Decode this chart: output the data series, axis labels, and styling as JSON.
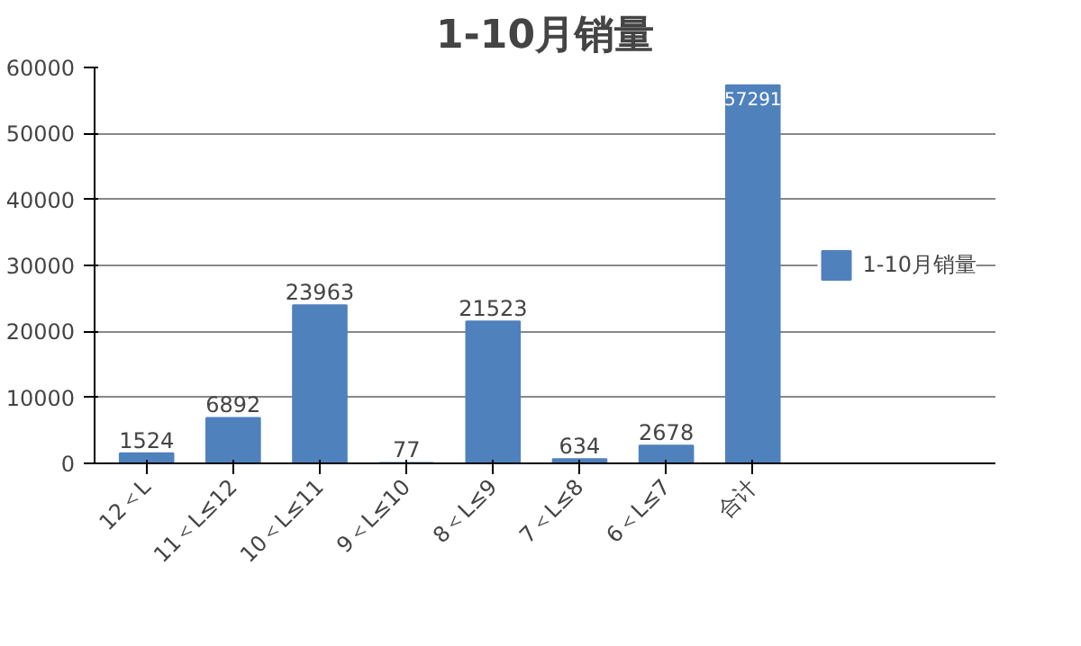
{
  "chart_data": {
    "type": "bar",
    "title": "1-10月销量",
    "categories": [
      "12＜L",
      "11＜L≤12",
      "10＜L≤11",
      "9＜L≤10",
      "8＜L≤9",
      "7＜L≤8",
      "6＜L≤7",
      "合计"
    ],
    "series": [
      {
        "name": "1-10月销量",
        "color": "#4f81bd",
        "values": [
          1524,
          6892,
          23963,
          77,
          21523,
          634,
          2678,
          57291
        ]
      }
    ],
    "ylim": [
      0,
      60000
    ],
    "yticks": [
      0,
      10000,
      20000,
      30000,
      40000,
      50000,
      60000
    ],
    "grid": "y",
    "legend": "right",
    "data_labels": true
  }
}
